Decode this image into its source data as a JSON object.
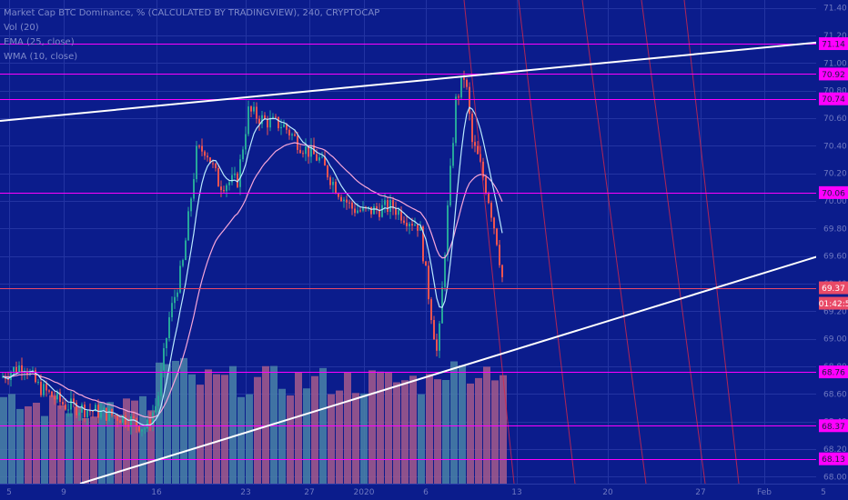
{
  "chart_data": {
    "type": "candlestick",
    "title": "Market Cap BTC Dominance, % (CALCULATED BY TRADINGVIEW), 240, CRYPTOCAP",
    "indicators": [
      "Vol (20)",
      "EMA (25, close)",
      "WMA (10, close)"
    ],
    "x_ticks": [
      "5",
      "9",
      "16",
      "23",
      "27",
      "2020",
      "6",
      "13",
      "20",
      "27",
      "Feb",
      "5"
    ],
    "y_ticks": [
      "71.40",
      "71.20",
      "71.00",
      "70.80",
      "70.60",
      "70.40",
      "70.20",
      "70.00",
      "69.80",
      "69.60",
      "69.40",
      "69.20",
      "69.00",
      "68.80",
      "68.60",
      "68.40",
      "68.20",
      "68.00"
    ],
    "ylim": [
      67.95,
      71.45
    ],
    "horizontal_levels": [
      {
        "label": "71.14",
        "value": 71.14,
        "color": "#ff00ff"
      },
      {
        "label": "70.92",
        "value": 70.92,
        "color": "#ff00ff"
      },
      {
        "label": "70.74",
        "value": 70.74,
        "color": "#ff00ff"
      },
      {
        "label": "70.06",
        "value": 70.06,
        "color": "#ff00ff"
      },
      {
        "label": "69.37",
        "value": 69.37,
        "color": "#e94a67"
      },
      {
        "label": "68.76",
        "value": 68.76,
        "color": "#ff00ff"
      },
      {
        "label": "68.37",
        "value": 68.37,
        "color": "#ff00ff"
      },
      {
        "label": "68.13",
        "value": 68.13,
        "color": "#ff00ff"
      }
    ],
    "current_price": "69.37",
    "countdown": "01:42:59",
    "trend_lines": [
      "upper resistance",
      "lower support"
    ],
    "grid": true,
    "colors": {
      "background": "#0b1c8c",
      "up": "#26a69a",
      "down": "#ef5350",
      "ema": "#f7a6d9",
      "wma": "#b9e9ff",
      "level": "#ff00ff",
      "trend": "#ffffff",
      "fib": "#d8284a",
      "vol_up": "#4a82a7",
      "vol_down": "#a65a8c"
    }
  }
}
